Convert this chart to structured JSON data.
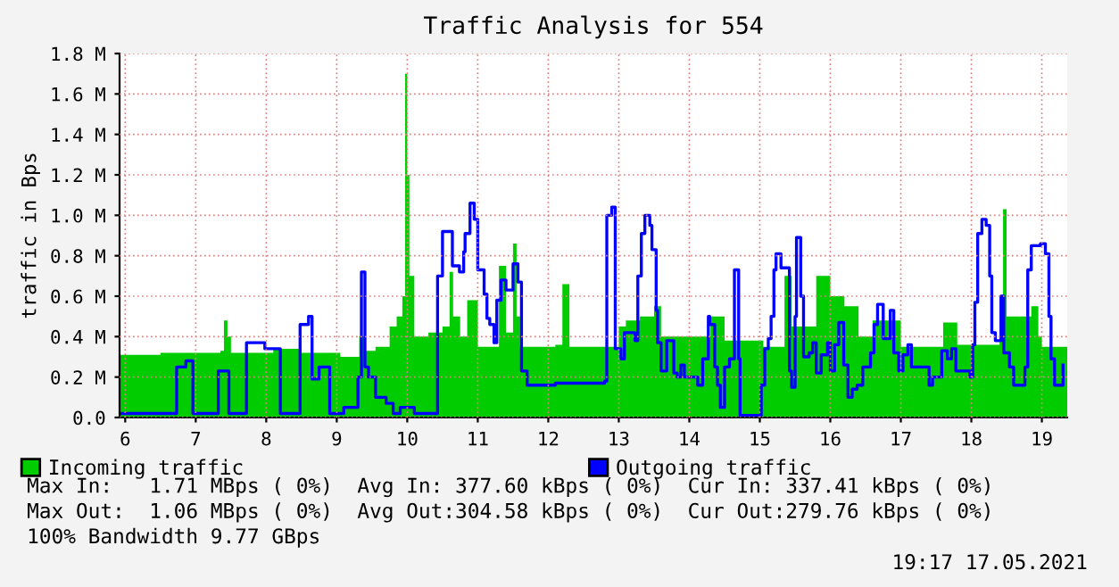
{
  "chart_data": {
    "type": "area",
    "title": "Traffic Analysis for 554",
    "ylabel": "traffic in Bps",
    "xlim": [
      5.92,
      19.36
    ],
    "xticks": [
      6,
      7,
      8,
      9,
      10,
      11,
      12,
      13,
      14,
      15,
      16,
      17,
      18,
      19
    ],
    "ylim": [
      0,
      1.8
    ],
    "yticks": [
      {
        "value": 0,
        "label": "0.0"
      },
      {
        "value": 0.2,
        "label": "0.2 M"
      },
      {
        "value": 0.4,
        "label": "0.4 M"
      },
      {
        "value": 0.6,
        "label": "0.6 M"
      },
      {
        "value": 0.8,
        "label": "0.8 M"
      },
      {
        "value": 1.0,
        "label": "1.0 M"
      },
      {
        "value": 1.2,
        "label": "1.2 M"
      },
      {
        "value": 1.4,
        "label": "1.4 M"
      },
      {
        "value": 1.6,
        "label": "1.6 M"
      },
      {
        "value": 1.8,
        "label": "1.8 M"
      }
    ],
    "grid": true,
    "legend": "bottom left",
    "series": [
      {
        "name": "Incoming traffic",
        "color": "#00cc00",
        "x": [
          5.92,
          6.5,
          7.0,
          7.35,
          7.4,
          7.45,
          7.5,
          8.1,
          8.5,
          9.05,
          9.32,
          9.4,
          9.55,
          9.75,
          9.85,
          9.93,
          9.97,
          10.0,
          10.03,
          10.1,
          10.3,
          10.5,
          10.6,
          10.65,
          10.75,
          10.85,
          11.0,
          11.3,
          11.4,
          11.5,
          11.55,
          11.6,
          12.1,
          12.2,
          12.3,
          13.0,
          13.1,
          13.3,
          13.5,
          13.6,
          14.3,
          14.5,
          15.05,
          15.35,
          15.45,
          15.8,
          16.0,
          16.2,
          16.4,
          16.6,
          17.0,
          17.6,
          17.8,
          18.4,
          18.45,
          18.5,
          18.85,
          18.95,
          19.0,
          19.36
        ],
        "values": [
          0.31,
          0.32,
          0.32,
          0.33,
          0.48,
          0.4,
          0.32,
          0.34,
          0.32,
          0.3,
          0.4,
          0.33,
          0.35,
          0.45,
          0.5,
          0.6,
          1.7,
          1.2,
          0.7,
          0.4,
          0.42,
          0.45,
          0.72,
          0.5,
          0.4,
          0.58,
          0.35,
          0.75,
          0.42,
          0.86,
          0.5,
          0.35,
          0.36,
          0.66,
          0.35,
          0.45,
          0.48,
          0.5,
          0.55,
          0.4,
          0.5,
          0.38,
          0.35,
          0.7,
          0.45,
          0.7,
          0.6,
          0.55,
          0.4,
          0.48,
          0.35,
          0.47,
          0.36,
          0.38,
          1.03,
          0.5,
          0.55,
          0.4,
          0.35,
          0.32
        ]
      },
      {
        "name": "Outgoing traffic",
        "type": "step",
        "color": "#0000ff",
        "x": [
          5.92,
          6.6,
          6.73,
          6.86,
          6.96,
          7.32,
          7.47,
          7.72,
          7.98,
          8.1,
          8.2,
          8.48,
          8.6,
          8.65,
          8.75,
          8.9,
          9.1,
          9.3,
          9.35,
          9.4,
          9.45,
          9.55,
          9.7,
          9.8,
          9.9,
          10.1,
          10.43,
          10.5,
          10.64,
          10.74,
          10.8,
          10.82,
          10.89,
          10.95,
          11.0,
          11.09,
          11.13,
          11.17,
          11.23,
          11.27,
          11.33,
          11.4,
          11.5,
          11.57,
          11.62,
          11.7,
          12.03,
          12.1,
          12.71,
          12.8,
          12.83,
          12.9,
          12.95,
          13.03,
          13.08,
          13.15,
          13.23,
          13.27,
          13.32,
          13.37,
          13.44,
          13.47,
          13.53,
          13.55,
          13.6,
          13.68,
          13.78,
          13.83,
          13.88,
          13.93,
          14.06,
          14.12,
          14.19,
          14.27,
          14.29,
          14.36,
          14.4,
          14.44,
          14.5,
          14.57,
          14.64,
          14.7,
          14.72,
          14.95,
          15.02,
          15.07,
          15.12,
          15.16,
          15.2,
          15.23,
          15.3,
          15.38,
          15.42,
          15.45,
          15.5,
          15.52,
          15.58,
          15.62,
          15.7,
          15.75,
          15.8,
          15.87,
          15.96,
          16.0,
          16.06,
          16.12,
          16.19,
          16.25,
          16.31,
          16.38,
          16.46,
          16.57,
          16.62,
          16.67,
          16.75,
          16.85,
          16.9,
          16.97,
          17.03,
          17.1,
          17.15,
          17.4,
          17.45,
          17.58,
          17.66,
          17.72,
          17.78,
          17.98,
          18.02,
          18.05,
          18.09,
          18.15,
          18.21,
          18.26,
          18.29,
          18.34,
          18.42,
          18.46,
          18.54,
          18.6,
          18.72,
          18.76,
          18.8,
          18.85,
          18.9,
          18.98,
          19.05,
          19.1,
          19.13,
          19.18,
          19.26,
          19.3
        ],
        "values": [
          0.02,
          0.02,
          0.25,
          0.28,
          0.02,
          0.23,
          0.02,
          0.37,
          0.34,
          0.34,
          0.02,
          0.46,
          0.5,
          0.19,
          0.25,
          0.02,
          0.05,
          0.2,
          0.72,
          0.25,
          0.2,
          0.1,
          0.07,
          0.02,
          0.05,
          0.02,
          0.7,
          0.92,
          0.75,
          0.72,
          0.82,
          0.91,
          1.06,
          0.98,
          0.73,
          0.61,
          0.49,
          0.46,
          0.37,
          0.58,
          0.68,
          0.63,
          0.76,
          0.67,
          0.23,
          0.16,
          0.16,
          0.17,
          0.17,
          0.18,
          1.0,
          1.04,
          0.34,
          0.29,
          0.42,
          0.42,
          0.38,
          0.7,
          0.91,
          1.0,
          0.95,
          0.83,
          0.53,
          0.37,
          0.23,
          0.38,
          0.22,
          0.2,
          0.26,
          0.2,
          0.2,
          0.16,
          0.29,
          0.5,
          0.46,
          0.25,
          0.16,
          0.05,
          0.25,
          0.29,
          0.73,
          0.29,
          0.01,
          0.01,
          0.16,
          0.34,
          0.39,
          0.5,
          0.73,
          0.81,
          0.74,
          0.74,
          0.23,
          0.15,
          0.5,
          0.89,
          0.6,
          0.3,
          0.32,
          0.37,
          0.22,
          0.31,
          0.37,
          0.23,
          0.36,
          0.47,
          0.26,
          0.1,
          0.14,
          0.16,
          0.25,
          0.32,
          0.46,
          0.56,
          0.39,
          0.53,
          0.32,
          0.23,
          0.31,
          0.36,
          0.25,
          0.16,
          0.2,
          0.33,
          0.29,
          0.34,
          0.23,
          0.2,
          0.36,
          0.57,
          0.91,
          0.98,
          0.95,
          0.7,
          0.42,
          0.38,
          0.6,
          0.32,
          0.25,
          0.16,
          0.16,
          0.25,
          0.73,
          0.85,
          0.85,
          0.86,
          0.81,
          0.5,
          0.29,
          0.16,
          0.16,
          0.26
        ]
      }
    ],
    "annotations": [
      "Max In:   1.71 MBps ( 0%)  Avg In: 377.60 kBps ( 0%)  Cur In: 337.41 kBps ( 0%)",
      "Max Out:  1.06 MBps ( 0%)  Avg Out:304.58 kBps ( 0%)  Cur Out:279.76 kBps ( 0%)",
      "100% Bandwidth 9.77 GBps",
      "19:17 17.05.2021"
    ]
  }
}
